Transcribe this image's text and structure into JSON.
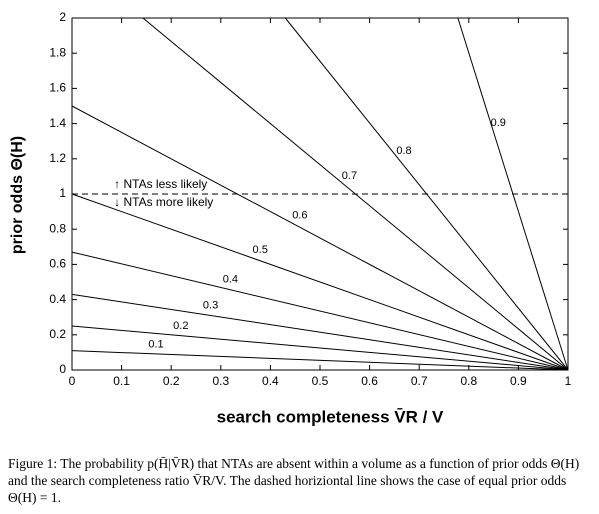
{
  "chart_data": {
    "type": "line",
    "xlabel": "search completeness V̄R / V",
    "ylabel": "prior odds Θ(H)",
    "xlim": [
      0,
      1
    ],
    "ylim": [
      0,
      2
    ],
    "xticks": [
      0,
      0.1,
      0.2,
      0.3,
      0.4,
      0.5,
      0.6,
      0.7,
      0.8,
      0.9,
      1
    ],
    "yticks": [
      0,
      0.2,
      0.4,
      0.6,
      0.8,
      1,
      1.2,
      1.4,
      1.6,
      1.8,
      2
    ],
    "color": "#000000",
    "series": [
      {
        "name": "0.1",
        "x": [
          0,
          1
        ],
        "values": [
          0.11,
          0
        ]
      },
      {
        "name": "0.2",
        "x": [
          0,
          1
        ],
        "values": [
          0.25,
          0
        ]
      },
      {
        "name": "0.3",
        "x": [
          0,
          1
        ],
        "values": [
          0.43,
          0
        ]
      },
      {
        "name": "0.4",
        "x": [
          0,
          1
        ],
        "values": [
          0.67,
          0
        ]
      },
      {
        "name": "0.5",
        "x": [
          0,
          1
        ],
        "values": [
          1,
          0
        ]
      },
      {
        "name": "0.6",
        "x": [
          0,
          1
        ],
        "values": [
          1.5,
          0
        ]
      },
      {
        "name": "0.7",
        "x": [
          0.143,
          1
        ],
        "values": [
          2,
          0
        ]
      },
      {
        "name": "0.8",
        "x": [
          0.43,
          1
        ],
        "values": [
          2,
          0
        ]
      },
      {
        "name": "0.9",
        "x": [
          0.778,
          1
        ],
        "values": [
          2,
          0
        ]
      }
    ],
    "reference_line": {
      "value": 1,
      "label_above": "↑ NTAs less likely",
      "label_below": "↓ NTAs more likely"
    }
  },
  "caption": "Figure 1: The probability p(H̄|V̄R) that NTAs are absent within a volume as a function of prior odds Θ(H) and the search completeness ratio V̄R/V. The dashed horiziontal line shows the case of equal prior odds Θ(H) = 1."
}
